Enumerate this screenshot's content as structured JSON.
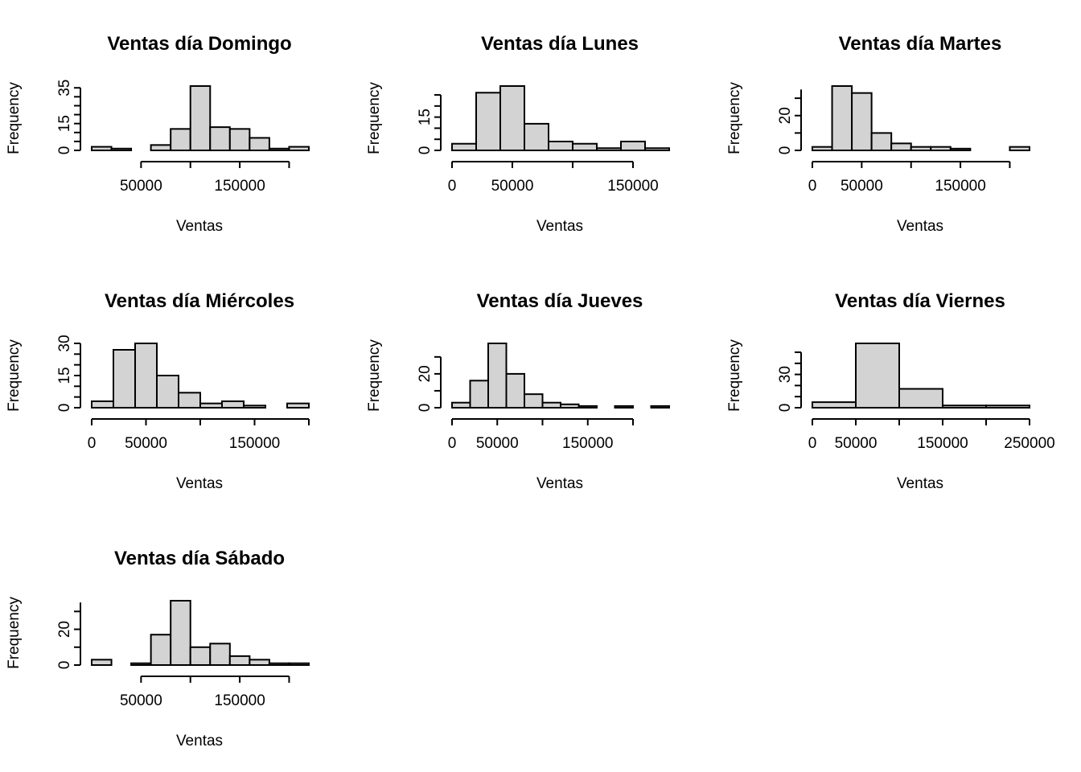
{
  "chart_data": [
    {
      "type": "bar",
      "title": "Ventas día Domingo",
      "xlabel": "Ventas",
      "ylabel": "Frequency",
      "bin_edges": [
        0,
        20000,
        40000,
        60000,
        80000,
        100000,
        120000,
        140000,
        160000,
        180000,
        200000,
        220000
      ],
      "values": [
        2,
        1,
        0,
        3,
        12,
        36,
        13,
        12,
        7,
        1,
        2
      ],
      "x_ticks": [
        50000,
        150000
      ],
      "y_ticks": [
        0,
        15,
        35
      ],
      "y_minor_ticks": [
        5,
        10,
        20,
        25,
        30
      ],
      "x_axis_range": [
        50000,
        200000
      ],
      "y_axis_range": [
        0,
        35
      ],
      "ylim": [
        0,
        36
      ]
    },
    {
      "type": "bar",
      "title": "Ventas día Lunes",
      "xlabel": "Ventas",
      "ylabel": "Frequency",
      "bin_edges": [
        0,
        20000,
        40000,
        60000,
        80000,
        100000,
        120000,
        140000,
        160000,
        180000
      ],
      "values": [
        3,
        26,
        29,
        12,
        4,
        3,
        1,
        4,
        1
      ],
      "x_ticks": [
        0,
        50000,
        150000
      ],
      "y_ticks": [
        0,
        15
      ],
      "y_minor_ticks": [
        5,
        10,
        20,
        25
      ],
      "x_axis_range": [
        0,
        150000
      ],
      "y_axis_range": [
        0,
        25
      ],
      "ylim": [
        0,
        29
      ]
    },
    {
      "type": "bar",
      "title": "Ventas día Martes",
      "xlabel": "Ventas",
      "ylabel": "Frequency",
      "bin_edges": [
        0,
        20000,
        40000,
        60000,
        80000,
        100000,
        120000,
        140000,
        160000,
        180000,
        200000,
        220000
      ],
      "values": [
        2,
        37,
        33,
        10,
        4,
        2,
        2,
        1,
        0,
        0,
        2
      ],
      "x_ticks": [
        0,
        50000,
        150000
      ],
      "y_ticks": [
        0,
        20
      ],
      "y_minor_ticks": [
        10,
        30
      ],
      "x_axis_range": [
        0,
        200000
      ],
      "y_axis_range": [
        0,
        35
      ],
      "ylim": [
        0,
        37
      ]
    },
    {
      "type": "bar",
      "title": "Ventas día Miércoles",
      "xlabel": "Ventas",
      "ylabel": "Frequency",
      "bin_edges": [
        0,
        20000,
        40000,
        60000,
        80000,
        100000,
        120000,
        140000,
        160000,
        180000,
        200000
      ],
      "values": [
        3,
        27,
        30,
        15,
        7,
        2,
        3,
        1,
        0,
        2
      ],
      "x_ticks": [
        0,
        50000,
        150000
      ],
      "y_ticks": [
        0,
        15,
        30
      ],
      "y_minor_ticks": [
        5,
        10,
        20,
        25
      ],
      "x_axis_range": [
        0,
        200000
      ],
      "y_axis_range": [
        0,
        30
      ],
      "ylim": [
        0,
        30
      ]
    },
    {
      "type": "bar",
      "title": "Ventas día Jueves",
      "xlabel": "Ventas",
      "ylabel": "Frequency",
      "bin_edges": [
        0,
        20000,
        40000,
        60000,
        80000,
        100000,
        120000,
        140000,
        160000,
        180000,
        200000,
        220000,
        240000
      ],
      "values": [
        3,
        16,
        38,
        20,
        8,
        3,
        2,
        1,
        0,
        1,
        0,
        1
      ],
      "x_ticks": [
        0,
        50000,
        150000
      ],
      "y_ticks": [
        0,
        20
      ],
      "y_minor_ticks": [
        10,
        30
      ],
      "x_axis_range": [
        0,
        200000
      ],
      "y_axis_range": [
        0,
        30
      ],
      "ylim": [
        0,
        38
      ]
    },
    {
      "type": "bar",
      "title": "Ventas día Viernes",
      "xlabel": "Ventas",
      "ylabel": "Frequency",
      "bin_edges": [
        0,
        50000,
        100000,
        150000,
        200000,
        250000
      ],
      "values": [
        5,
        58,
        17,
        2,
        2
      ],
      "x_ticks": [
        0,
        50000,
        150000,
        250000
      ],
      "y_ticks": [
        0,
        30
      ],
      "y_minor_ticks": [
        10,
        20,
        40,
        50
      ],
      "x_axis_range": [
        0,
        250000
      ],
      "y_axis_range": [
        0,
        50
      ],
      "ylim": [
        0,
        58
      ]
    },
    {
      "type": "bar",
      "title": "Ventas día Sábado",
      "xlabel": "Ventas",
      "ylabel": "Frequency",
      "bin_edges": [
        0,
        20000,
        40000,
        60000,
        80000,
        100000,
        120000,
        140000,
        160000,
        180000,
        200000,
        220000
      ],
      "values": [
        3,
        0,
        1,
        17,
        36,
        10,
        12,
        5,
        3,
        1,
        1
      ],
      "x_ticks": [
        50000,
        150000
      ],
      "y_ticks": [
        0,
        20
      ],
      "y_minor_ticks": [
        10,
        30
      ],
      "x_axis_range": [
        50000,
        200000
      ],
      "y_axis_range": [
        0,
        35
      ],
      "ylim": [
        0,
        36
      ]
    }
  ]
}
